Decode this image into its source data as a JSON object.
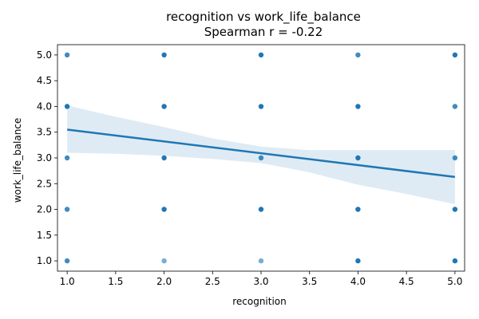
{
  "chart_data": {
    "type": "scatter",
    "title": "recognition vs work_life_balance",
    "subtitle": "Spearman r = -0.22",
    "xlabel": "recognition",
    "ylabel": "work_life_balance",
    "xlim": [
      0.9,
      5.1
    ],
    "ylim": [
      0.8,
      5.2
    ],
    "xticks": [
      "1.0",
      "1.5",
      "2.0",
      "2.5",
      "3.0",
      "3.5",
      "4.0",
      "4.5",
      "5.0"
    ],
    "yticks": [
      "1.0",
      "1.5",
      "2.0",
      "2.5",
      "3.0",
      "3.5",
      "4.0",
      "4.5",
      "5.0"
    ],
    "grid": false,
    "points": [
      {
        "x": 1,
        "y": 1,
        "alpha": 0.85
      },
      {
        "x": 1,
        "y": 2,
        "alpha": 0.85
      },
      {
        "x": 1,
        "y": 3,
        "alpha": 0.85
      },
      {
        "x": 1,
        "y": 4,
        "alpha": 1.0
      },
      {
        "x": 1,
        "y": 5,
        "alpha": 0.85
      },
      {
        "x": 2,
        "y": 1,
        "alpha": 0.6
      },
      {
        "x": 2,
        "y": 2,
        "alpha": 1.0
      },
      {
        "x": 2,
        "y": 3,
        "alpha": 1.0
      },
      {
        "x": 2,
        "y": 4,
        "alpha": 1.0
      },
      {
        "x": 2,
        "y": 5,
        "alpha": 1.0
      },
      {
        "x": 3,
        "y": 1,
        "alpha": 0.6
      },
      {
        "x": 3,
        "y": 2,
        "alpha": 1.0
      },
      {
        "x": 3,
        "y": 3,
        "alpha": 0.85
      },
      {
        "x": 3,
        "y": 4,
        "alpha": 1.0
      },
      {
        "x": 3,
        "y": 5,
        "alpha": 1.0
      },
      {
        "x": 4,
        "y": 1,
        "alpha": 1.0
      },
      {
        "x": 4,
        "y": 2,
        "alpha": 1.0
      },
      {
        "x": 4,
        "y": 3,
        "alpha": 1.0
      },
      {
        "x": 4,
        "y": 4,
        "alpha": 1.0
      },
      {
        "x": 4,
        "y": 5,
        "alpha": 0.85
      },
      {
        "x": 5,
        "y": 1,
        "alpha": 1.0
      },
      {
        "x": 5,
        "y": 2,
        "alpha": 1.0
      },
      {
        "x": 5,
        "y": 3,
        "alpha": 0.85
      },
      {
        "x": 5,
        "y": 4,
        "alpha": 0.85
      },
      {
        "x": 5,
        "y": 5,
        "alpha": 1.0
      }
    ],
    "regression": {
      "x_start": 1.0,
      "y_start": 3.55,
      "x_end": 5.0,
      "y_end": 2.63
    },
    "confidence_band": {
      "x": [
        1.0,
        1.5,
        2.0,
        2.5,
        3.0,
        3.5,
        4.0,
        4.5,
        5.0
      ],
      "upper": [
        4.02,
        3.8,
        3.6,
        3.38,
        3.22,
        3.15,
        3.15,
        3.15,
        3.15
      ],
      "lower": [
        3.1,
        3.08,
        3.04,
        2.98,
        2.9,
        2.72,
        2.48,
        2.3,
        2.1
      ]
    },
    "colors": {
      "series": "#1f77b4"
    }
  }
}
